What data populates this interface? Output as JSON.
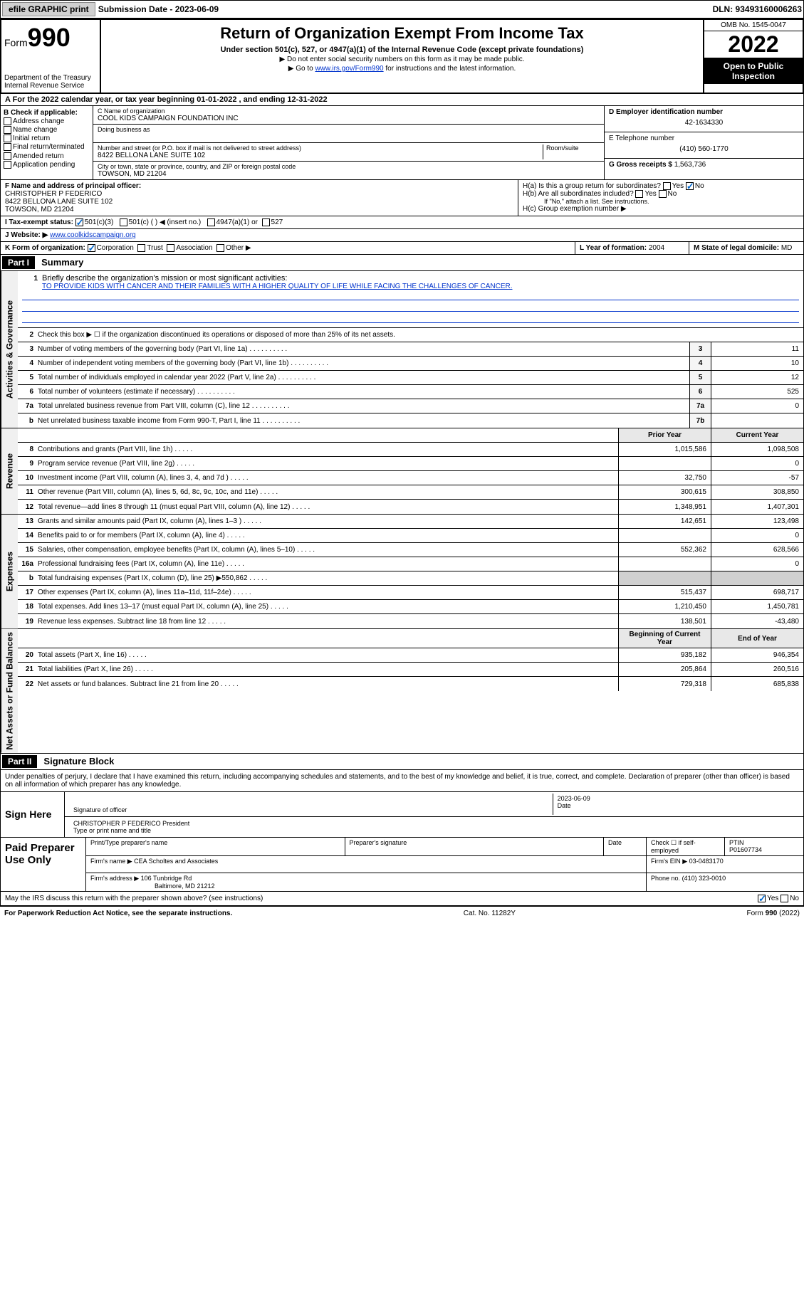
{
  "topbar": {
    "efile_label": "efile GRAPHIC print",
    "submission_label": "Submission Date - 2023-06-09",
    "dln_label": "DLN: 93493160006263"
  },
  "header": {
    "form_label": "Form",
    "form_number": "990",
    "dept": "Department of the Treasury",
    "irs": "Internal Revenue Service",
    "title": "Return of Organization Exempt From Income Tax",
    "subtitle": "Under section 501(c), 527, or 4947(a)(1) of the Internal Revenue Code (except private foundations)",
    "note1": "▶ Do not enter social security numbers on this form as it may be made public.",
    "note2_pre": "▶ Go to ",
    "note2_link": "www.irs.gov/Form990",
    "note2_post": " for instructions and the latest information.",
    "omb": "OMB No. 1545-0047",
    "year": "2022",
    "open_public": "Open to Public Inspection"
  },
  "section_a": "A For the 2022 calendar year, or tax year beginning 01-01-2022    , and ending 12-31-2022",
  "col_b": {
    "header": "B Check if applicable:",
    "opts": [
      "Address change",
      "Name change",
      "Initial return",
      "Final return/terminated",
      "Amended return",
      "Application pending"
    ]
  },
  "col_c": {
    "name_label": "C Name of organization",
    "name": "COOL KIDS CAMPAIGN FOUNDATION INC",
    "dba_label": "Doing business as",
    "addr_label": "Number and street (or P.O. box if mail is not delivered to street address)",
    "room_label": "Room/suite",
    "addr": "8422 BELLONA LANE SUITE 102",
    "city_label": "City or town, state or province, country, and ZIP or foreign postal code",
    "city": "TOWSON, MD  21204"
  },
  "col_d": {
    "label": "D Employer identification number",
    "value": "42-1634330"
  },
  "col_e": {
    "label": "E Telephone number",
    "value": "(410) 560-1770"
  },
  "col_g": {
    "label": "G Gross receipts $",
    "value": "1,563,736"
  },
  "col_f": {
    "label": "F  Name and address of principal officer:",
    "name": "CHRISTOPHER P FEDERICO",
    "addr": "8422 BELLONA LANE SUITE 102",
    "city": "TOWSON, MD  21204"
  },
  "col_h": {
    "ha": "H(a)  Is this a group return for subordinates?",
    "hb": "H(b)  Are all subordinates included?",
    "hb_note": "If \"No,\" attach a list. See instructions.",
    "hc": "H(c)  Group exemption number ▶"
  },
  "row_i": {
    "label": "I    Tax-exempt status:",
    "opt1": "501(c)(3)",
    "opt2": "501(c) (   ) ◀ (insert no.)",
    "opt3": "4947(a)(1) or",
    "opt4": "527"
  },
  "row_j": {
    "label": "J   Website: ▶",
    "value": "www.coolkidscampaign.org"
  },
  "row_k": {
    "label": "K Form of organization:",
    "opts": [
      "Corporation",
      "Trust",
      "Association",
      "Other ▶"
    ]
  },
  "row_l": {
    "label": "L Year of formation:",
    "value": "2004"
  },
  "row_m": {
    "label": "M State of legal domicile:",
    "value": "MD"
  },
  "part1": {
    "header": "Part I",
    "title": "Summary"
  },
  "summary": {
    "sidebar1": "Activities & Governance",
    "sidebar2": "Revenue",
    "sidebar3": "Expenses",
    "sidebar4": "Net Assets or Fund Balances",
    "line1": "Briefly describe the organization's mission or most significant activities:",
    "mission": "TO PROVIDE KIDS WITH CANCER AND THEIR FAMILIES WITH A HIGHER QUALITY OF LIFE WHILE FACING THE CHALLENGES OF CANCER.",
    "line2": "Check this box ▶ ☐  if the organization discontinued its operations or disposed of more than 25% of its net assets.",
    "rows_ag": [
      {
        "n": "3",
        "t": "Number of voting members of the governing body (Part VI, line 1a)",
        "box": "3",
        "v": "11"
      },
      {
        "n": "4",
        "t": "Number of independent voting members of the governing body (Part VI, line 1b)",
        "box": "4",
        "v": "10"
      },
      {
        "n": "5",
        "t": "Total number of individuals employed in calendar year 2022 (Part V, line 2a)",
        "box": "5",
        "v": "12"
      },
      {
        "n": "6",
        "t": "Total number of volunteers (estimate if necessary)",
        "box": "6",
        "v": "525"
      },
      {
        "n": "7a",
        "t": "Total unrelated business revenue from Part VIII, column (C), line 12",
        "box": "7a",
        "v": "0"
      },
      {
        "n": "b",
        "t": "Net unrelated business taxable income from Form 990-T, Part I, line 11",
        "box": "7b",
        "v": ""
      }
    ],
    "year_header": {
      "prior": "Prior Year",
      "current": "Current Year"
    },
    "rows_rev": [
      {
        "n": "8",
        "t": "Contributions and grants (Part VIII, line 1h)",
        "p": "1,015,586",
        "c": "1,098,508"
      },
      {
        "n": "9",
        "t": "Program service revenue (Part VIII, line 2g)",
        "p": "",
        "c": "0"
      },
      {
        "n": "10",
        "t": "Investment income (Part VIII, column (A), lines 3, 4, and 7d )",
        "p": "32,750",
        "c": "-57"
      },
      {
        "n": "11",
        "t": "Other revenue (Part VIII, column (A), lines 5, 6d, 8c, 9c, 10c, and 11e)",
        "p": "300,615",
        "c": "308,850"
      },
      {
        "n": "12",
        "t": "Total revenue—add lines 8 through 11 (must equal Part VIII, column (A), line 12)",
        "p": "1,348,951",
        "c": "1,407,301"
      }
    ],
    "rows_exp": [
      {
        "n": "13",
        "t": "Grants and similar amounts paid (Part IX, column (A), lines 1–3 )",
        "p": "142,651",
        "c": "123,498"
      },
      {
        "n": "14",
        "t": "Benefits paid to or for members (Part IX, column (A), line 4)",
        "p": "",
        "c": "0"
      },
      {
        "n": "15",
        "t": "Salaries, other compensation, employee benefits (Part IX, column (A), lines 5–10)",
        "p": "552,362",
        "c": "628,566"
      },
      {
        "n": "16a",
        "t": "Professional fundraising fees (Part IX, column (A), line 11e)",
        "p": "",
        "c": "0"
      },
      {
        "n": "b",
        "t": "Total fundraising expenses (Part IX, column (D), line 25) ▶550,862",
        "p": "shaded",
        "c": "shaded"
      },
      {
        "n": "17",
        "t": "Other expenses (Part IX, column (A), lines 11a–11d, 11f–24e)",
        "p": "515,437",
        "c": "698,717"
      },
      {
        "n": "18",
        "t": "Total expenses. Add lines 13–17 (must equal Part IX, column (A), line 25)",
        "p": "1,210,450",
        "c": "1,450,781"
      },
      {
        "n": "19",
        "t": "Revenue less expenses. Subtract line 18 from line 12",
        "p": "138,501",
        "c": "-43,480"
      }
    ],
    "net_header": {
      "beg": "Beginning of Current Year",
      "end": "End of Year"
    },
    "rows_net": [
      {
        "n": "20",
        "t": "Total assets (Part X, line 16)",
        "p": "935,182",
        "c": "946,354"
      },
      {
        "n": "21",
        "t": "Total liabilities (Part X, line 26)",
        "p": "205,864",
        "c": "260,516"
      },
      {
        "n": "22",
        "t": "Net assets or fund balances. Subtract line 21 from line 20",
        "p": "729,318",
        "c": "685,838"
      }
    ]
  },
  "part2": {
    "header": "Part II",
    "title": "Signature Block"
  },
  "sig": {
    "warn": "Under penalties of perjury, I declare that I have examined this return, including accompanying schedules and statements, and to the best of my knowledge and belief, it is true, correct, and complete. Declaration of preparer (other than officer) is based on all information of which preparer has any knowledge.",
    "sign_here": "Sign Here",
    "sig_officer": "Signature of officer",
    "date": "Date",
    "date_val": "2023-06-09",
    "name": "CHRISTOPHER P FEDERICO  President",
    "name_label": "Type or print name and title",
    "paid": "Paid Preparer Use Only",
    "prep_name_label": "Print/Type preparer's name",
    "prep_sig_label": "Preparer's signature",
    "prep_date_label": "Date",
    "check_se": "Check ☐ if self-employed",
    "ptin_label": "PTIN",
    "ptin": "P01607734",
    "firm_name_label": "Firm's name    ▶",
    "firm_name": "CEA Scholtes and Associates",
    "firm_ein_label": "Firm's EIN ▶",
    "firm_ein": "03-0483170",
    "firm_addr_label": "Firm's address ▶",
    "firm_addr": "106 Tunbridge Rd",
    "firm_city": "Baltimore, MD  21212",
    "phone_label": "Phone no.",
    "phone": "(410) 323-0010",
    "discuss": "May the IRS discuss this return with the preparer shown above? (see instructions)"
  },
  "footer": {
    "left": "For Paperwork Reduction Act Notice, see the separate instructions.",
    "center": "Cat. No. 11282Y",
    "right": "Form 990 (2022)"
  }
}
